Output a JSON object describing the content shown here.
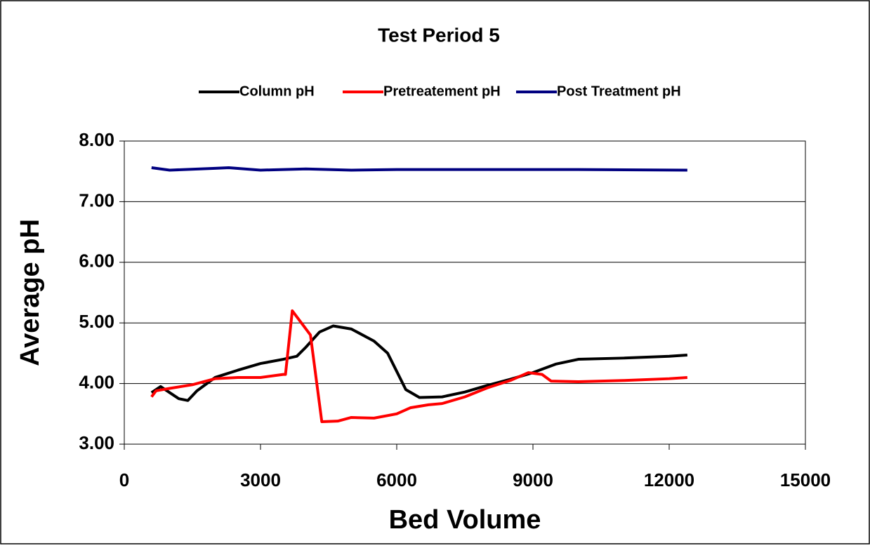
{
  "chart_data": {
    "type": "line",
    "title": "Test Period 5",
    "xlabel": "Bed Volume",
    "ylabel": "Average pH",
    "xlim": [
      0,
      15000
    ],
    "xticks": [
      0,
      3000,
      6000,
      9000,
      12000,
      15000
    ],
    "ylim": [
      3,
      8
    ],
    "yticks": [
      {
        "value": 3,
        "label": "3.00"
      },
      {
        "value": 4,
        "label": "4.00"
      },
      {
        "value": 5,
        "label": "5.00"
      },
      {
        "value": 6,
        "label": "6.00"
      },
      {
        "value": 7,
        "label": "7.00"
      },
      {
        "value": 8,
        "label": "8.00"
      }
    ],
    "grid": true,
    "legend": "top",
    "series": [
      {
        "name": "Column pH",
        "color": "#000000",
        "x": [
          600,
          800,
          1000,
          1200,
          1400,
          1600,
          2000,
          2500,
          3000,
          3500,
          3800,
          4000,
          4300,
          4600,
          5000,
          5500,
          5800,
          6000,
          6200,
          6500,
          7000,
          7500,
          8000,
          8500,
          9000,
          9500,
          10000,
          11000,
          12000,
          12400
        ],
        "values": [
          3.85,
          3.95,
          3.85,
          3.75,
          3.72,
          3.88,
          4.1,
          4.22,
          4.33,
          4.4,
          4.45,
          4.6,
          4.85,
          4.95,
          4.9,
          4.7,
          4.5,
          4.2,
          3.9,
          3.77,
          3.78,
          3.86,
          3.97,
          4.07,
          4.18,
          4.32,
          4.4,
          4.42,
          4.45,
          4.47
        ]
      },
      {
        "name": "Pretreatement pH",
        "color": "#ff0000",
        "x": [
          600,
          700,
          1000,
          1500,
          2000,
          2500,
          3000,
          3500,
          3550,
          3700,
          4100,
          4350,
          4700,
          5000,
          5500,
          6000,
          6300,
          6700,
          7000,
          7500,
          8000,
          8500,
          8900,
          9200,
          9400,
          10000,
          11000,
          12000,
          12400
        ],
        "values": [
          3.78,
          3.88,
          3.92,
          3.98,
          4.08,
          4.1,
          4.1,
          4.15,
          4.15,
          5.2,
          4.8,
          3.37,
          3.38,
          3.44,
          3.43,
          3.5,
          3.6,
          3.65,
          3.67,
          3.78,
          3.93,
          4.05,
          4.18,
          4.15,
          4.04,
          4.03,
          4.05,
          4.08,
          4.1
        ]
      },
      {
        "name": "Post Treatment pH",
        "color": "#000080",
        "x": [
          600,
          1000,
          2000,
          2300,
          3000,
          4000,
          5000,
          6000,
          8000,
          10000,
          12400
        ],
        "values": [
          7.56,
          7.52,
          7.55,
          7.56,
          7.52,
          7.54,
          7.52,
          7.53,
          7.53,
          7.53,
          7.52
        ]
      }
    ]
  }
}
